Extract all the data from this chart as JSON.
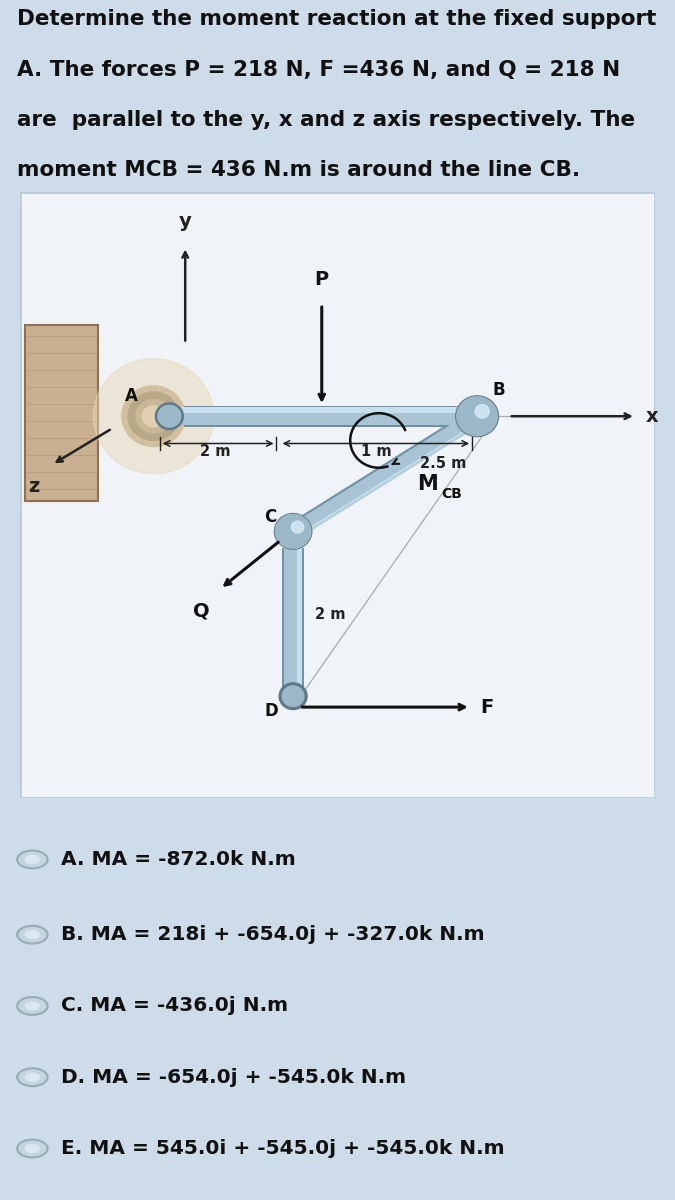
{
  "bg_color": "#cddce8",
  "diagram_bg": "#f0f4f8",
  "diagram_edge": "#b8ccd8",
  "title_lines": [
    "Determine the moment reaction at the fixed support",
    "A. The forces P = 218 N, F =436 N, and Q = 218 N",
    "are  parallel to the y, x and z axis respectively. The",
    "moment MCB = 436 N.m is around the line CB."
  ],
  "title_fontsize": 15.5,
  "title_color": "#111111",
  "options": [
    "A. MA = -872.0k N.m",
    "B. MA = 218i + -654.0j + -327.0k N.m",
    "C. MA = -436.0j N.m",
    "D. MA = -654.0j + -545.0k N.m",
    "E. MA = 545.0i + -545.0j + -545.0k N.m"
  ],
  "opt_fontsize": 14.5,
  "pipe_color": "#a8c4d4",
  "pipe_edge": "#7090a8",
  "pipe_hi": "#d0e8f4",
  "joint_color": "#9ab8c8",
  "joint_edge": "#607888",
  "wall_color": "#c8b090",
  "wall_edge": "#907050",
  "axis_color": "#222222",
  "dim_color": "#222222",
  "arrow_color": "#111111",
  "label_color": "#111111",
  "glow_color": "#e8d8b8"
}
